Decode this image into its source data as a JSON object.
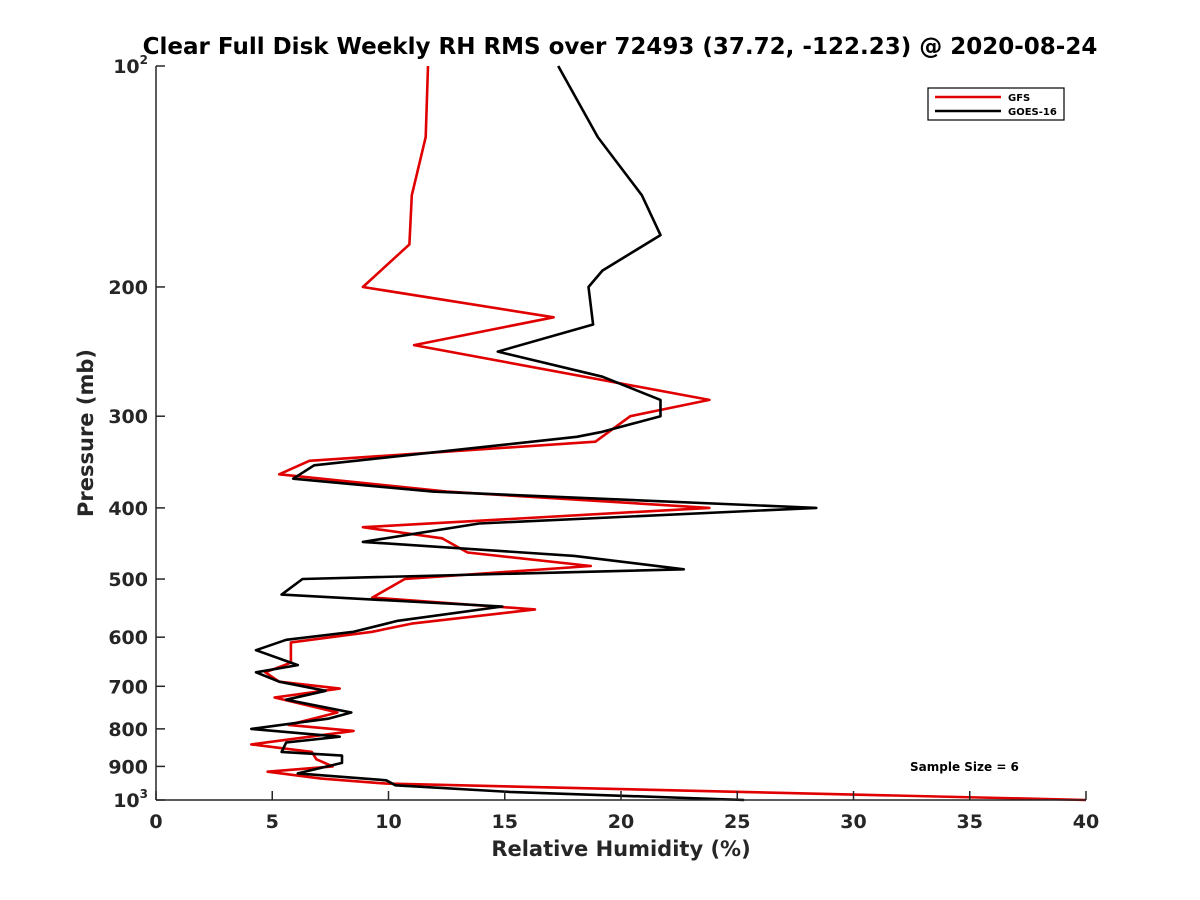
{
  "chart_data": {
    "type": "line",
    "title": "Clear Full Disk Weekly RH RMS over 72493 (37.72, -122.23) @ 2020-08-24",
    "xlabel": "Relative Humidity (%)",
    "ylabel": "Pressure (mb)",
    "xlim": [
      0,
      40
    ],
    "ylim": [
      100,
      1000
    ],
    "y_scale": "log",
    "y_reversed": true,
    "x_ticks": [
      "0",
      "5",
      "10",
      "15",
      "20",
      "25",
      "30",
      "35",
      "40"
    ],
    "y_ticks": [
      {
        "value": 100,
        "base": "10",
        "exp": "2"
      },
      {
        "value": 200,
        "label": "200"
      },
      {
        "value": 300,
        "label": "300"
      },
      {
        "value": 400,
        "label": "400"
      },
      {
        "value": 500,
        "label": "500"
      },
      {
        "value": 600,
        "label": "600"
      },
      {
        "value": 700,
        "label": "700"
      },
      {
        "value": 800,
        "label": "800"
      },
      {
        "value": 900,
        "label": "900"
      },
      {
        "value": 1000,
        "base": "10",
        "exp": "3"
      }
    ],
    "grid": false,
    "legend_position": "top-right",
    "annotation": "Sample Size = 6",
    "series": [
      {
        "name": "GFS",
        "color": "#e00000",
        "points": [
          [
            11.7,
            100
          ],
          [
            11.6,
            125
          ],
          [
            11.0,
            150
          ],
          [
            10.9,
            175
          ],
          [
            8.9,
            200
          ],
          [
            17.1,
            220
          ],
          [
            11.1,
            240
          ],
          [
            23.8,
            285
          ],
          [
            20.4,
            300
          ],
          [
            18.9,
            325
          ],
          [
            6.6,
            345
          ],
          [
            5.3,
            360
          ],
          [
            12.5,
            380
          ],
          [
            23.8,
            400
          ],
          [
            8.9,
            425
          ],
          [
            12.3,
            440
          ],
          [
            13.4,
            460
          ],
          [
            18.7,
            480
          ],
          [
            10.7,
            500
          ],
          [
            9.3,
            530
          ],
          [
            16.3,
            550
          ],
          [
            11.0,
            575
          ],
          [
            9.3,
            590
          ],
          [
            5.8,
            610
          ],
          [
            5.8,
            650
          ],
          [
            4.7,
            670
          ],
          [
            5.3,
            690
          ],
          [
            7.9,
            705
          ],
          [
            5.1,
            725
          ],
          [
            7.8,
            760
          ],
          [
            5.7,
            790
          ],
          [
            8.5,
            805
          ],
          [
            4.1,
            840
          ],
          [
            6.7,
            860
          ],
          [
            6.9,
            880
          ],
          [
            7.6,
            900
          ],
          [
            4.8,
            915
          ],
          [
            7.1,
            935
          ],
          [
            9.9,
            950
          ],
          [
            40.0,
            1000
          ]
        ]
      },
      {
        "name": "GOES-16",
        "color": "#000000",
        "points": [
          [
            17.3,
            100
          ],
          [
            19.0,
            125
          ],
          [
            20.9,
            150
          ],
          [
            21.7,
            170
          ],
          [
            19.2,
            190
          ],
          [
            18.6,
            200
          ],
          [
            18.8,
            225
          ],
          [
            14.7,
            245
          ],
          [
            19.2,
            265
          ],
          [
            21.7,
            285
          ],
          [
            21.7,
            300
          ],
          [
            19.2,
            315
          ],
          [
            18.1,
            320
          ],
          [
            6.8,
            350
          ],
          [
            5.9,
            365
          ],
          [
            11.9,
            380
          ],
          [
            28.4,
            400
          ],
          [
            13.9,
            420
          ],
          [
            8.9,
            445
          ],
          [
            18.0,
            465
          ],
          [
            22.7,
            485
          ],
          [
            6.3,
            500
          ],
          [
            5.4,
            525
          ],
          [
            14.9,
            545
          ],
          [
            10.4,
            570
          ],
          [
            8.5,
            590
          ],
          [
            5.6,
            605
          ],
          [
            4.3,
            625
          ],
          [
            6.1,
            655
          ],
          [
            4.3,
            670
          ],
          [
            5.3,
            690
          ],
          [
            7.3,
            710
          ],
          [
            5.6,
            730
          ],
          [
            8.4,
            760
          ],
          [
            7.4,
            775
          ],
          [
            4.1,
            800
          ],
          [
            7.9,
            820
          ],
          [
            5.6,
            835
          ],
          [
            5.4,
            860
          ],
          [
            8.0,
            870
          ],
          [
            8.0,
            890
          ],
          [
            6.1,
            920
          ],
          [
            9.9,
            940
          ],
          [
            10.3,
            955
          ],
          [
            15.2,
            975
          ],
          [
            25.3,
            1000
          ]
        ]
      }
    ]
  }
}
